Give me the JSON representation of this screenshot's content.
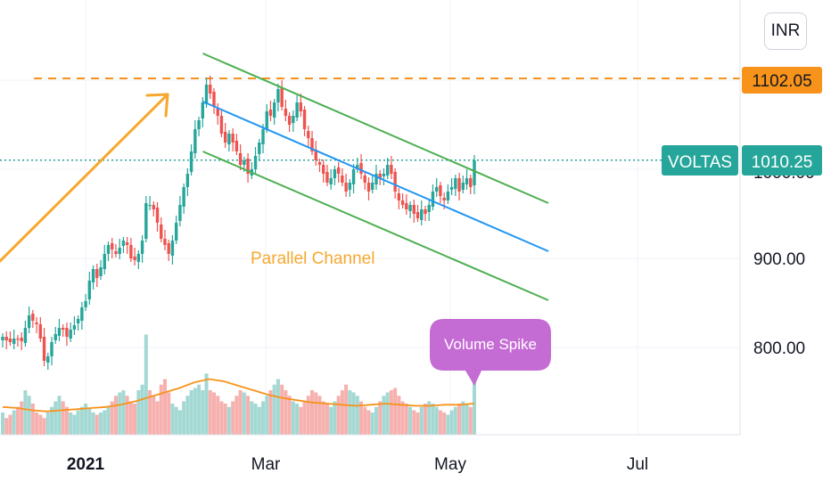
{
  "currency_label": "INR",
  "symbol": "VOLTAS",
  "last_price_label": "1010.25",
  "resistance_label": "1102.05",
  "annotations": {
    "channel_label": "Parallel Channel",
    "spike_label": "Volume Spike"
  },
  "colors": {
    "up": "#26a69a",
    "down": "#ef5350",
    "up_volume": "#a3d8d3",
    "down_volume": "#f6b0ae",
    "resistance": "#f7931a",
    "channel": "#4caf50",
    "midline": "#2196f3",
    "volume_ma": "#f7931a",
    "callout": "#c56bd4",
    "arrow": "#f7a82e"
  },
  "chart_data": {
    "type": "candlestick",
    "y_ticks": [
      "900.00",
      "800.00"
    ],
    "x_ticks": [
      "2021",
      "Mar",
      "May",
      "Jul"
    ],
    "ylim": [
      700,
      1155
    ],
    "resistance_level": 1102.05,
    "last_price": 1010.25,
    "trend": {
      "from": 868,
      "to": 1090,
      "from_date": "2020-12-18",
      "to_date": "2021-02-08"
    },
    "channel_upper": {
      "start_date": "2021-02-08",
      "start": 1130,
      "end_date": "2021-05-31",
      "end": 962
    },
    "channel_mid": {
      "start_date": "2021-02-08",
      "start": 1076,
      "end_date": "2021-05-31",
      "end": 908
    },
    "channel_lower": {
      "start_date": "2021-02-08",
      "start": 1020,
      "end_date": "2021-05-31",
      "end": 853
    },
    "volume_ma": [
      25,
      24,
      22,
      21,
      22,
      23,
      24,
      25,
      27,
      30,
      34,
      38,
      42,
      47,
      50,
      48,
      44,
      40,
      36,
      33,
      31,
      29,
      28,
      27,
      26,
      27,
      28,
      27,
      26,
      26,
      27,
      27,
      28
    ],
    "closes": [
      812,
      808,
      806,
      810,
      809,
      807,
      822,
      836,
      830,
      826,
      810,
      785,
      790,
      806,
      815,
      822,
      820,
      812,
      820,
      825,
      832,
      845,
      852,
      875,
      888,
      878,
      890,
      905,
      915,
      910,
      905,
      912,
      920,
      915,
      900,
      898,
      905,
      920,
      962,
      960,
      955,
      940,
      922,
      915,
      905,
      920,
      940,
      960,
      980,
      995,
      1020,
      1045,
      1055,
      1075,
      1095,
      1085,
      1070,
      1060,
      1040,
      1030,
      1040,
      1030,
      1020,
      1005,
      1010,
      995,
      1000,
      1015,
      1030,
      1045,
      1065,
      1060,
      1075,
      1090,
      1070,
      1060,
      1050,
      1060,
      1075,
      1065,
      1045,
      1035,
      1020,
      1010,
      1005,
      995,
      985,
      990,
      1000,
      995,
      985,
      975,
      985,
      1000,
      1005,
      995,
      985,
      975,
      985,
      995,
      990,
      995,
      1005,
      995,
      975,
      965,
      960,
      955,
      960,
      950,
      945,
      955,
      950,
      960,
      975,
      980,
      970,
      965,
      975,
      980,
      990,
      975,
      985,
      990,
      980,
      1010
    ],
    "volumes": [
      20,
      15,
      18,
      22,
      25,
      30,
      40,
      35,
      28,
      20,
      18,
      15,
      20,
      25,
      30,
      35,
      30,
      25,
      20,
      18,
      22,
      25,
      28,
      24,
      20,
      18,
      20,
      22,
      25,
      30,
      35,
      38,
      40,
      35,
      30,
      28,
      40,
      45,
      90,
      40,
      35,
      30,
      45,
      50,
      38,
      28,
      25,
      22,
      30,
      35,
      40,
      42,
      45,
      40,
      55,
      40,
      38,
      35,
      30,
      28,
      25,
      30,
      35,
      40,
      38,
      35,
      30,
      28,
      25,
      30,
      35,
      40,
      45,
      50,
      45,
      40,
      35,
      30,
      28,
      25,
      30,
      35,
      40,
      38,
      35,
      30,
      28,
      25,
      30,
      35,
      40,
      45,
      40,
      38,
      35,
      30,
      25,
      22,
      20,
      25,
      30,
      35,
      38,
      40,
      42,
      35,
      30,
      28,
      25,
      22,
      20,
      25,
      28,
      30,
      28,
      25,
      22,
      20,
      18,
      22,
      25,
      28,
      30,
      28,
      25,
      95
    ]
  }
}
